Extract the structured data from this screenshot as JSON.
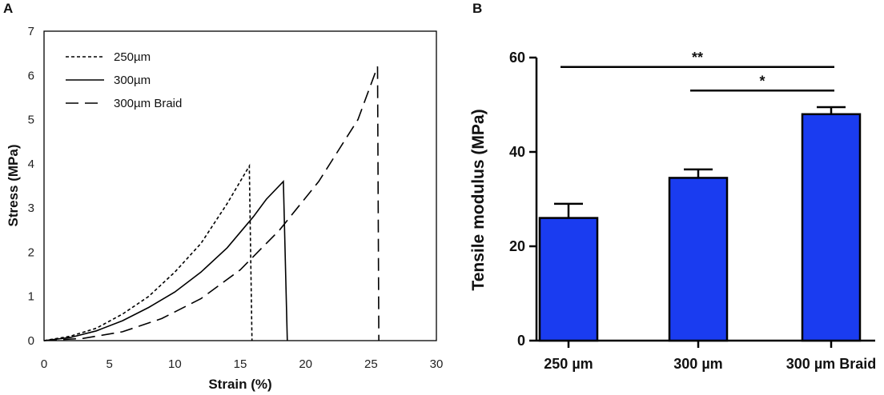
{
  "chart_data": [
    {
      "panel_label": "A",
      "type": "line",
      "title": "",
      "xlabel": "Strain (%)",
      "ylabel": "Stress (MPa)",
      "xlim": [
        0,
        30
      ],
      "ylim": [
        0,
        7
      ],
      "xticks": [
        "0",
        "5",
        "10",
        "15",
        "20",
        "25",
        "30"
      ],
      "yticks": [
        "0",
        "1",
        "2",
        "3",
        "4",
        "5",
        "6",
        "7"
      ],
      "legend_position": "top-left",
      "series": [
        {
          "name": "250µm",
          "line_style": "dotted",
          "x": [
            0,
            2,
            4,
            6,
            8,
            10,
            12,
            14,
            15.7,
            15.7,
            15.9
          ],
          "y": [
            0,
            0.1,
            0.28,
            0.6,
            1.0,
            1.55,
            2.2,
            3.1,
            3.95,
            3.9,
            0
          ]
        },
        {
          "name": "300µm",
          "line_style": "solid",
          "x": [
            0,
            2,
            4,
            6,
            8,
            10,
            12,
            14,
            16,
            17,
            18.3,
            18.6
          ],
          "y": [
            0,
            0.07,
            0.22,
            0.45,
            0.75,
            1.1,
            1.55,
            2.1,
            2.8,
            3.2,
            3.6,
            0
          ]
        },
        {
          "name": "300µm Braid",
          "line_style": "dashed",
          "x": [
            0,
            3,
            6,
            9,
            12,
            15,
            18,
            21,
            24,
            25.5,
            25.6
          ],
          "y": [
            0,
            0.05,
            0.2,
            0.5,
            0.95,
            1.6,
            2.5,
            3.6,
            5.0,
            6.2,
            0
          ]
        }
      ]
    },
    {
      "panel_label": "B",
      "type": "bar",
      "title": "",
      "xlabel": "",
      "ylabel": "Tensile modulus (MPa)",
      "ylim": [
        0,
        60
      ],
      "yticks": [
        "0",
        "20",
        "40",
        "60"
      ],
      "categories": [
        "250 µm",
        "300 µm",
        "300 µm Braid"
      ],
      "values": [
        26,
        34.5,
        48
      ],
      "errors": [
        3,
        1.8,
        1.5
      ],
      "bar_color": "#1a3cf0",
      "significance": [
        {
          "from": 0,
          "to": 2,
          "label": "**",
          "level": 58
        },
        {
          "from": 1,
          "to": 2,
          "label": "*",
          "level": 53
        }
      ]
    }
  ]
}
